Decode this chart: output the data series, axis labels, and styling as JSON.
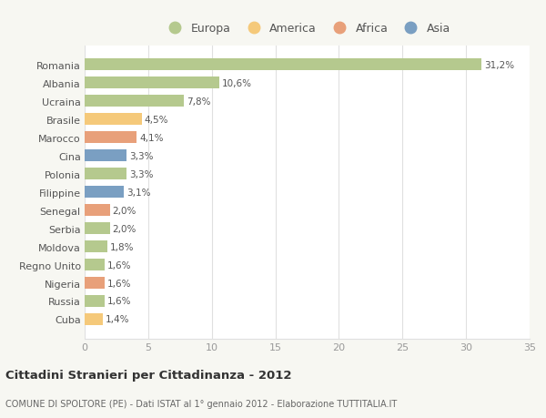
{
  "categories": [
    "Romania",
    "Albania",
    "Ucraina",
    "Brasile",
    "Marocco",
    "Cina",
    "Polonia",
    "Filippine",
    "Senegal",
    "Serbia",
    "Moldova",
    "Regno Unito",
    "Nigeria",
    "Russia",
    "Cuba"
  ],
  "values": [
    31.2,
    10.6,
    7.8,
    4.5,
    4.1,
    3.3,
    3.3,
    3.1,
    2.0,
    2.0,
    1.8,
    1.6,
    1.6,
    1.6,
    1.4
  ],
  "labels": [
    "31,2%",
    "10,6%",
    "7,8%",
    "4,5%",
    "4,1%",
    "3,3%",
    "3,3%",
    "3,1%",
    "2,0%",
    "2,0%",
    "1,8%",
    "1,6%",
    "1,6%",
    "1,6%",
    "1,4%"
  ],
  "colors": [
    "#b5c98e",
    "#b5c98e",
    "#b5c98e",
    "#f5c97a",
    "#e8a07a",
    "#7a9fc2",
    "#b5c98e",
    "#7a9fc2",
    "#e8a07a",
    "#b5c98e",
    "#b5c98e",
    "#b5c98e",
    "#e8a07a",
    "#b5c98e",
    "#f5c97a"
  ],
  "legend_labels": [
    "Europa",
    "America",
    "Africa",
    "Asia"
  ],
  "legend_colors": [
    "#b5c98e",
    "#f5c97a",
    "#e8a07a",
    "#7a9fc2"
  ],
  "title": "Cittadini Stranieri per Cittadinanza - 2012",
  "subtitle": "COMUNE DI SPOLTORE (PE) - Dati ISTAT al 1° gennaio 2012 - Elaborazione TUTTITALIA.IT",
  "xlim": [
    0,
    35
  ],
  "xticks": [
    0,
    5,
    10,
    15,
    20,
    25,
    30,
    35
  ],
  "background_color": "#f7f7f2",
  "bar_background": "#ffffff",
  "grid_color": "#e0e0e0",
  "bar_height": 0.65
}
